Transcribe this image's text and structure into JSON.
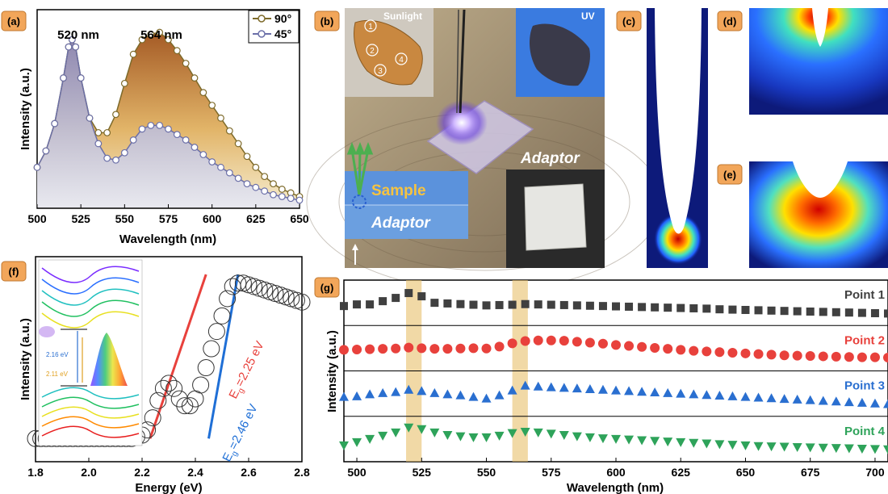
{
  "panel_labels": {
    "a": "(a)",
    "b": "(b)",
    "c": "(c)",
    "d": "(d)",
    "e": "(e)",
    "f": "(f)",
    "g": "(g)"
  },
  "colors": {
    "label_bg": "#f2a65a",
    "peak_brown": "#b5651d",
    "peak_purple": "#6b6fa8",
    "red_line": "#e8413c",
    "blue_line": "#1f6fd6",
    "g_gray": "#404040",
    "g_red": "#e8413c",
    "g_blue": "#2a6fd0",
    "g_green": "#2ea35a",
    "highlight": "#e8c06a"
  },
  "panel_b": {
    "sunlight": "Sunlight",
    "uv": "UV",
    "adaptor": "Adaptor",
    "sample": "Sample",
    "adaptor2": "Adaptor",
    "markers": [
      "1",
      "2",
      "3",
      "4"
    ]
  },
  "panel_f_inset": {
    "e1": "2.16 eV",
    "e2": "2.11 eV"
  },
  "chart_data": [
    {
      "panel": "a",
      "type": "line",
      "xlabel": "Wavelength (nm)",
      "ylabel": "Intensity (a.u.)",
      "xlim": [
        500,
        650
      ],
      "ylim": [
        0,
        1
      ],
      "xticks": [
        "500",
        "525",
        "550",
        "575",
        "600",
        "625",
        "650"
      ],
      "legend": [
        "90°",
        "45°"
      ],
      "annotations": [
        "520 nm",
        "564 nm"
      ],
      "x": [
        500,
        505,
        510,
        515,
        518,
        520,
        522,
        525,
        530,
        535,
        540,
        545,
        550,
        555,
        560,
        565,
        570,
        575,
        580,
        585,
        590,
        595,
        600,
        605,
        610,
        615,
        620,
        625,
        630,
        635,
        640,
        645,
        650
      ],
      "series": [
        {
          "name": "90°",
          "color": "#b5651d",
          "values": [
            0.18,
            0.27,
            0.42,
            0.67,
            0.84,
            0.88,
            0.84,
            0.67,
            0.45,
            0.37,
            0.37,
            0.47,
            0.64,
            0.8,
            0.88,
            0.91,
            0.92,
            0.88,
            0.82,
            0.75,
            0.67,
            0.59,
            0.52,
            0.45,
            0.38,
            0.31,
            0.24,
            0.18,
            0.13,
            0.09,
            0.06,
            0.04,
            0.02
          ]
        },
        {
          "name": "45°",
          "color": "#6b6fa8",
          "values": [
            0.18,
            0.27,
            0.42,
            0.67,
            0.84,
            0.88,
            0.84,
            0.67,
            0.45,
            0.31,
            0.23,
            0.22,
            0.26,
            0.33,
            0.39,
            0.41,
            0.41,
            0.39,
            0.36,
            0.33,
            0.29,
            0.25,
            0.21,
            0.18,
            0.15,
            0.12,
            0.09,
            0.07,
            0.05,
            0.03,
            0.02,
            0.01,
            0.0
          ]
        }
      ]
    },
    {
      "panel": "f",
      "type": "scatter",
      "xlabel": "Energy (eV)",
      "ylabel": "Intensity (a.u.)",
      "xlim": [
        1.8,
        2.8
      ],
      "ylim": [
        0,
        1
      ],
      "xticks": [
        "1.8",
        "2.0",
        "2.2",
        "2.4",
        "2.6",
        "2.8"
      ],
      "annotations": [
        "E",
        "g",
        "=2.25 eV",
        "E",
        "g",
        "=2.46 eV"
      ],
      "x": [
        1.8,
        1.82,
        1.84,
        1.86,
        1.88,
        1.9,
        1.92,
        1.94,
        1.96,
        1.98,
        2.0,
        2.02,
        2.04,
        2.06,
        2.08,
        2.1,
        2.12,
        2.14,
        2.16,
        2.18,
        2.2,
        2.22,
        2.24,
        2.26,
        2.28,
        2.3,
        2.32,
        2.34,
        2.36,
        2.38,
        2.4,
        2.42,
        2.44,
        2.46,
        2.48,
        2.5,
        2.52,
        2.54,
        2.56,
        2.58,
        2.6,
        2.62,
        2.64,
        2.66,
        2.68,
        2.7,
        2.72,
        2.74,
        2.76,
        2.78,
        2.8
      ],
      "values": [
        0.05,
        0.05,
        0.05,
        0.05,
        0.05,
        0.05,
        0.05,
        0.05,
        0.05,
        0.05,
        0.05,
        0.05,
        0.05,
        0.05,
        0.05,
        0.05,
        0.05,
        0.05,
        0.05,
        0.06,
        0.07,
        0.1,
        0.17,
        0.27,
        0.34,
        0.37,
        0.34,
        0.28,
        0.24,
        0.24,
        0.28,
        0.36,
        0.46,
        0.57,
        0.67,
        0.76,
        0.86,
        0.93,
        0.95,
        0.95,
        0.94,
        0.93,
        0.92,
        0.91,
        0.9,
        0.89,
        0.88,
        0.87,
        0.86,
        0.85,
        0.84
      ],
      "fits": [
        {
          "name": "E_g=2.25 eV",
          "color": "#e8413c",
          "x": [
            2.23,
            2.44
          ],
          "y": [
            0.05,
            1.0
          ]
        },
        {
          "name": "E_g=2.46 eV",
          "color": "#1f6fd6",
          "x": [
            2.45,
            2.56
          ],
          "y": [
            0.05,
            1.0
          ]
        }
      ]
    },
    {
      "panel": "g",
      "type": "scatter",
      "xlabel": "Wavelength (nm)",
      "ylabel": "Intensity (a.u.)",
      "xlim": [
        495,
        705
      ],
      "xticks": [
        "500",
        "525",
        "550",
        "575",
        "600",
        "625",
        "650",
        "675",
        "700"
      ],
      "highlight_bands_nm": [
        [
          519,
          525
        ],
        [
          560,
          566
        ]
      ],
      "x": [
        495,
        500,
        505,
        510,
        515,
        520,
        525,
        530,
        535,
        540,
        545,
        550,
        555,
        560,
        565,
        570,
        575,
        580,
        585,
        590,
        595,
        600,
        605,
        610,
        615,
        620,
        625,
        630,
        635,
        640,
        645,
        650,
        655,
        660,
        665,
        670,
        675,
        680,
        685,
        690,
        695,
        700,
        705
      ],
      "series": [
        {
          "name": "Point 1",
          "marker": "square",
          "color": "#404040",
          "values": [
            0.4,
            0.45,
            0.45,
            0.55,
            0.65,
            0.8,
            0.7,
            0.5,
            0.48,
            0.46,
            0.44,
            0.42,
            0.43,
            0.44,
            0.46,
            0.45,
            0.44,
            0.43,
            0.42,
            0.41,
            0.4,
            0.39,
            0.38,
            0.37,
            0.36,
            0.35,
            0.34,
            0.33,
            0.32,
            0.3,
            0.29,
            0.28,
            0.27,
            0.26,
            0.25,
            0.24,
            0.23,
            0.22,
            0.21,
            0.2,
            0.19,
            0.18,
            0.17
          ]
        },
        {
          "name": "Point 2",
          "marker": "circle",
          "color": "#e8413c",
          "values": [
            0.45,
            0.46,
            0.47,
            0.48,
            0.49,
            0.52,
            0.5,
            0.48,
            0.48,
            0.49,
            0.5,
            0.49,
            0.55,
            0.65,
            0.72,
            0.74,
            0.74,
            0.73,
            0.7,
            0.67,
            0.64,
            0.6,
            0.57,
            0.54,
            0.51,
            0.48,
            0.45,
            0.42,
            0.4,
            0.38,
            0.36,
            0.34,
            0.32,
            0.3,
            0.28,
            0.27,
            0.26,
            0.25,
            0.24,
            0.23,
            0.22,
            0.22,
            0.21
          ]
        },
        {
          "name": "Point 3",
          "marker": "triangle-up",
          "color": "#2a6fd0",
          "values": [
            0.4,
            0.42,
            0.48,
            0.52,
            0.55,
            0.62,
            0.58,
            0.52,
            0.48,
            0.45,
            0.4,
            0.35,
            0.45,
            0.6,
            0.75,
            0.72,
            0.7,
            0.68,
            0.66,
            0.64,
            0.62,
            0.6,
            0.58,
            0.56,
            0.54,
            0.52,
            0.5,
            0.48,
            0.46,
            0.44,
            0.42,
            0.4,
            0.38,
            0.36,
            0.34,
            0.32,
            0.3,
            0.28,
            0.26,
            0.24,
            0.22,
            0.2,
            0.18
          ]
        },
        {
          "name": "Point 4",
          "marker": "triangle-down",
          "color": "#2ea35a",
          "values": [
            0.3,
            0.4,
            0.5,
            0.6,
            0.7,
            0.85,
            0.8,
            0.7,
            0.62,
            0.58,
            0.55,
            0.55,
            0.6,
            0.68,
            0.72,
            0.7,
            0.66,
            0.62,
            0.58,
            0.55,
            0.52,
            0.5,
            0.48,
            0.46,
            0.44,
            0.42,
            0.4,
            0.38,
            0.36,
            0.34,
            0.32,
            0.3,
            0.28,
            0.27,
            0.26,
            0.25,
            0.24,
            0.23,
            0.22,
            0.21,
            0.2,
            0.19,
            0.18
          ]
        }
      ]
    }
  ]
}
